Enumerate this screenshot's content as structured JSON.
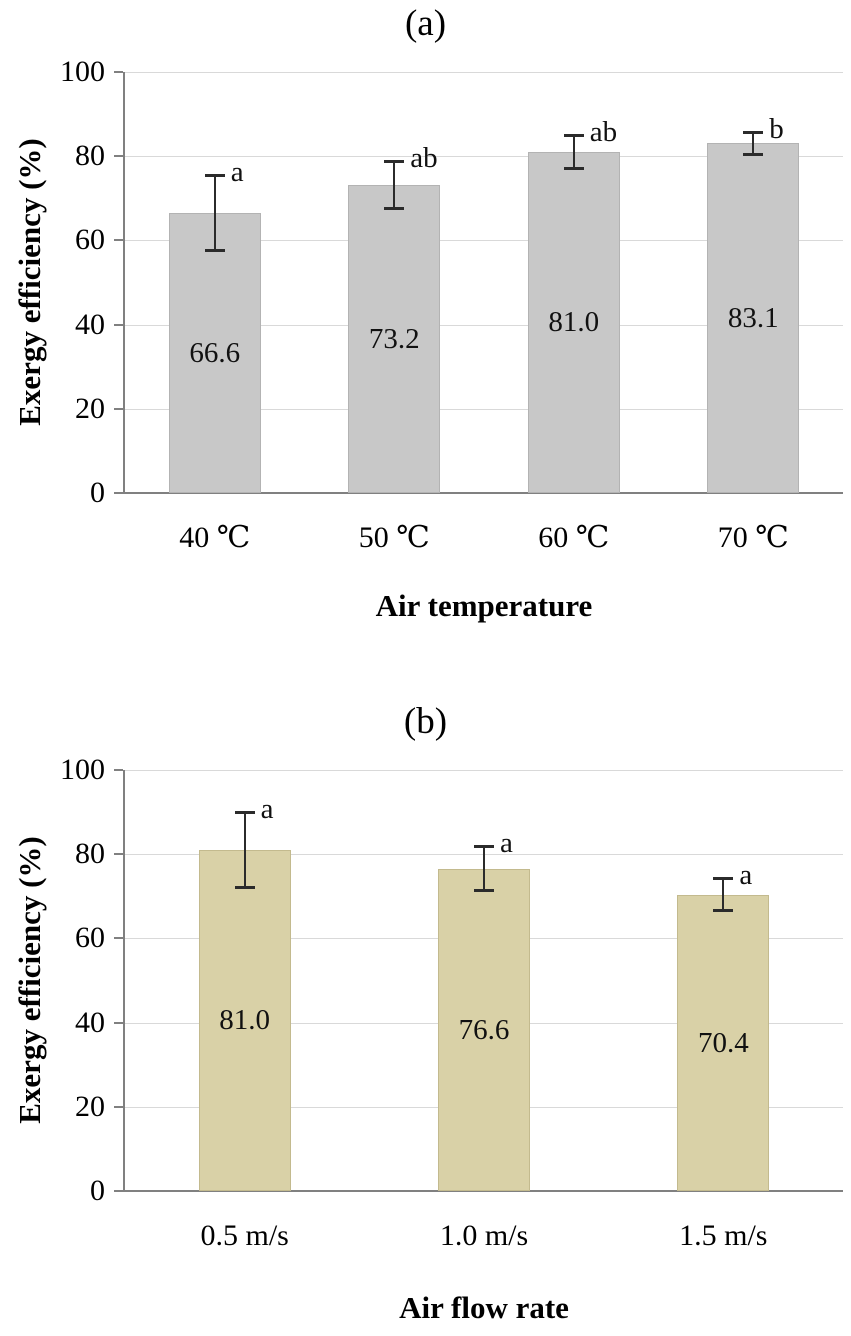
{
  "chart_data": [
    {
      "type": "bar",
      "panel_label": "(a)",
      "title": "",
      "categories": [
        "40 ℃",
        "50 ℃",
        "60 ℃",
        "70 ℃"
      ],
      "values": [
        66.6,
        73.2,
        81.0,
        83.1
      ],
      "value_labels": [
        "66.6",
        "73.2",
        "81.0",
        "83.1"
      ],
      "error_plus": [
        9.0,
        5.7,
        4.0,
        2.7
      ],
      "error_minus": [
        9.0,
        5.7,
        4.0,
        2.7
      ],
      "sig_letters": [
        "a",
        "ab",
        "ab",
        "b"
      ],
      "xlabel": "Air temperature",
      "ylabel": "Exergy efficiency (%)",
      "ylim": [
        0,
        100
      ],
      "yticks": [
        0,
        20,
        40,
        60,
        80,
        100
      ],
      "grid": true,
      "legend": null,
      "bar_color": "#c8c8c8",
      "bar_border": "#b3b3b3"
    },
    {
      "type": "bar",
      "panel_label": "(b)",
      "title": "",
      "categories": [
        "0.5 m/s",
        "1.0 m/s",
        "1.5 m/s"
      ],
      "values": [
        81.0,
        76.6,
        70.4
      ],
      "value_labels": [
        "81.0",
        "76.6",
        "70.4"
      ],
      "error_plus": [
        9.0,
        5.3,
        4.0
      ],
      "error_minus": [
        9.0,
        5.3,
        4.0
      ],
      "sig_letters": [
        "a",
        "a",
        "a"
      ],
      "xlabel": "Air flow rate",
      "ylabel": "Exergy efficiency (%)",
      "ylim": [
        0,
        100
      ],
      "yticks": [
        0,
        20,
        40,
        60,
        80,
        100
      ],
      "grid": true,
      "legend": null,
      "bar_color": "#d9d1a7",
      "bar_border": "#c3ba8e"
    }
  ]
}
